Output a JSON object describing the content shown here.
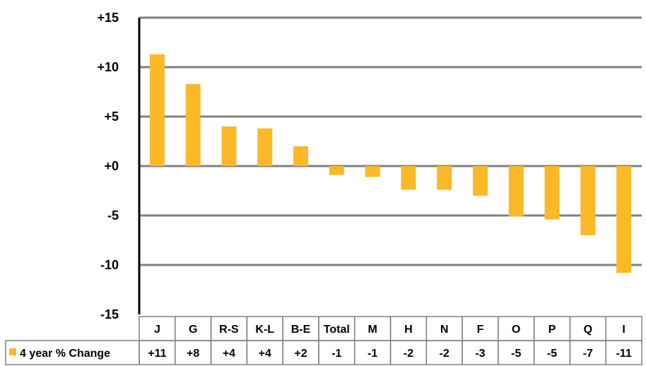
{
  "chart_data": {
    "type": "bar",
    "categories": [
      "J",
      "G",
      "R-S",
      "K-L",
      "B-E",
      "Total",
      "M",
      "H",
      "N",
      "F",
      "O",
      "P",
      "Q",
      "I"
    ],
    "series": [
      {
        "name": "4 year % Change",
        "values": [
          11.3,
          8.3,
          4.0,
          3.8,
          2.0,
          -0.9,
          -1.1,
          -2.4,
          -2.4,
          -3.0,
          -5.1,
          -5.4,
          -7.0,
          -10.8
        ],
        "table_labels": [
          "+11",
          "+8",
          "+4",
          "+4",
          "+2",
          "-1",
          "-1",
          "-2",
          "-2",
          "-3",
          "-5",
          "-5",
          "-7",
          "-11"
        ],
        "color": "#FBB829"
      }
    ],
    "ylim": [
      -15,
      15
    ],
    "yticks": [
      -15,
      -10,
      -5,
      0,
      5,
      10,
      15
    ],
    "ytick_labels": [
      "-15",
      "-10",
      "-5",
      "+0",
      "+5",
      "+10",
      "+15"
    ],
    "grid": true,
    "data_table": true
  }
}
